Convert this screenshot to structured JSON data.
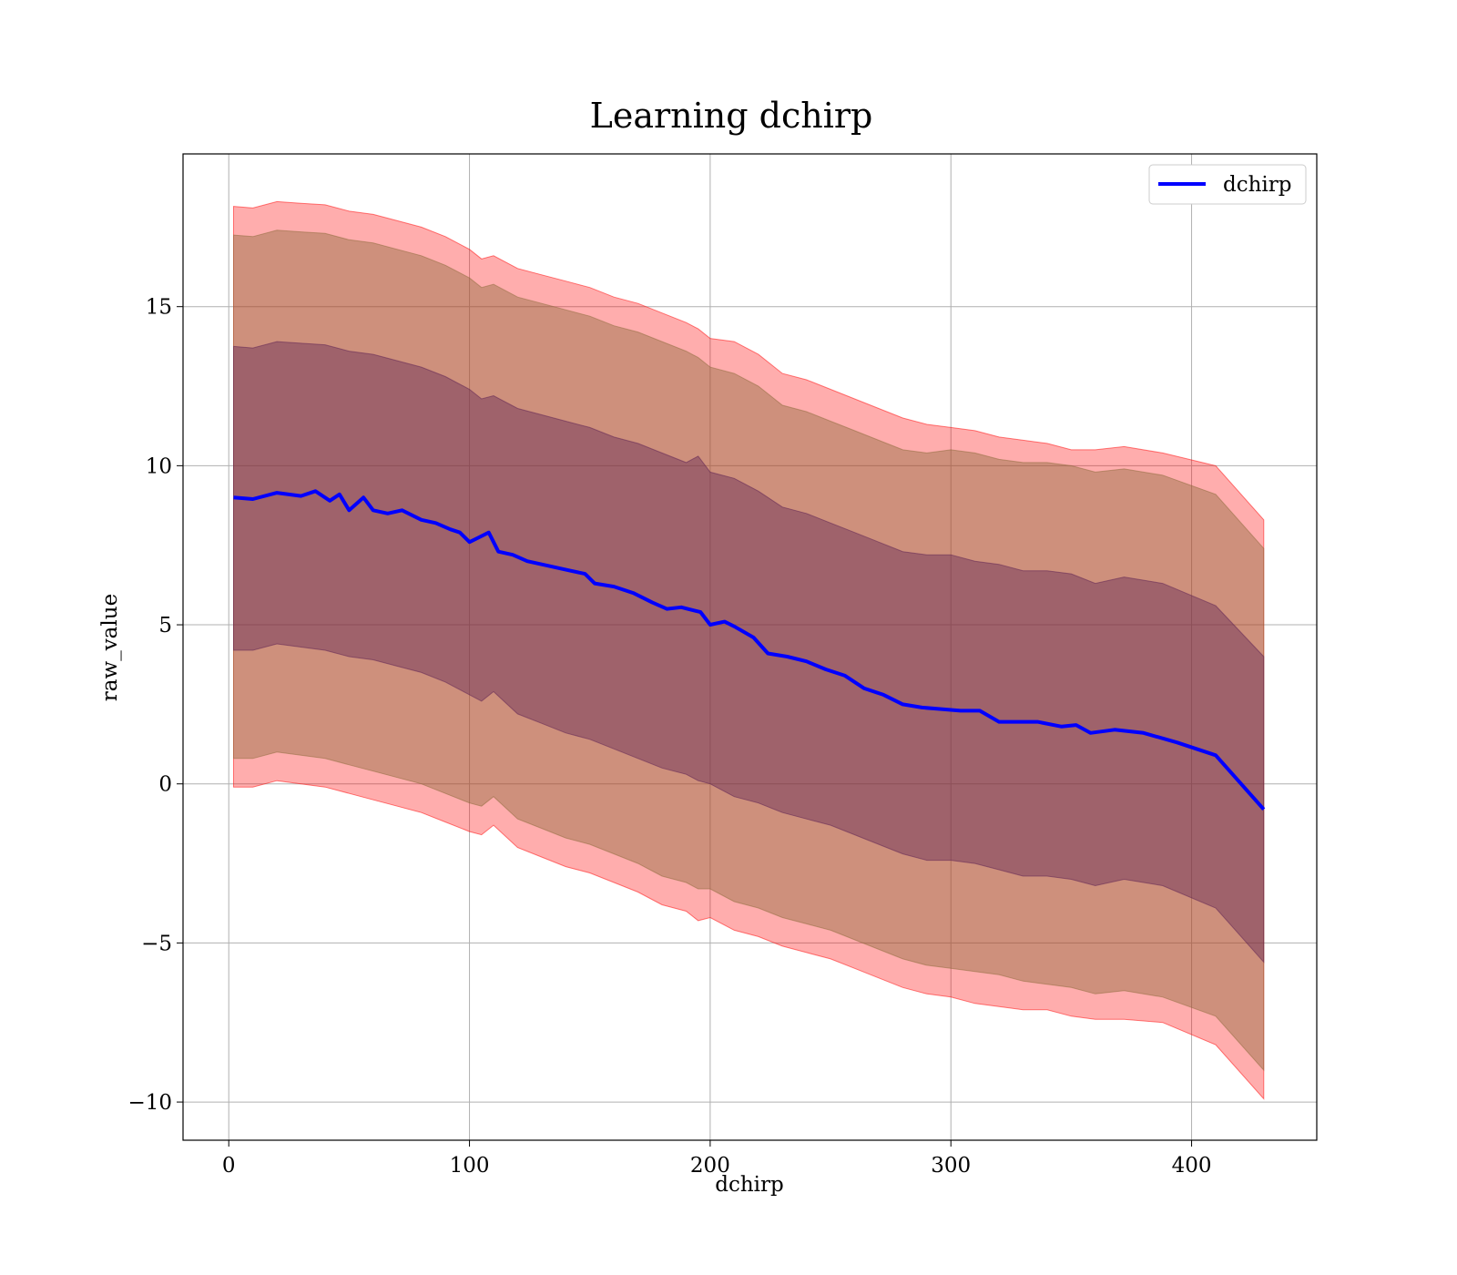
{
  "chart_data": {
    "type": "area",
    "title": "Learning dchirp",
    "xlabel": "dchirp",
    "ylabel": "raw_value",
    "xlim": [
      -19,
      452
    ],
    "ylim": [
      -11.2,
      19.8
    ],
    "x_ticks": [
      0,
      100,
      200,
      300,
      400
    ],
    "x_tick_labels": [
      "0",
      "100",
      "200",
      "300",
      "400"
    ],
    "y_ticks": [
      -10,
      -5,
      0,
      5,
      10,
      15
    ],
    "y_tick_labels": [
      "−10",
      "−5",
      "0",
      "5",
      "10",
      "15"
    ],
    "grid": true,
    "legend_position": "top-right",
    "series": [
      {
        "name": "dchirp",
        "color": "#0000ff",
        "x": [
          2,
          10,
          20,
          30,
          36,
          42,
          46,
          50,
          56,
          60,
          66,
          72,
          80,
          86,
          92,
          96,
          100,
          104,
          108,
          112,
          118,
          124,
          130,
          136,
          142,
          148,
          152,
          160,
          168,
          176,
          182,
          188,
          196,
          200,
          206,
          210,
          218,
          224,
          232,
          240,
          248,
          256,
          264,
          272,
          280,
          288,
          296,
          304,
          312,
          320,
          328,
          336,
          346,
          352,
          358,
          368,
          380,
          394,
          410,
          430
        ],
        "y": [
          9.0,
          8.95,
          9.15,
          9.05,
          9.2,
          8.9,
          9.1,
          8.6,
          9.0,
          8.6,
          8.5,
          8.6,
          8.3,
          8.2,
          8.0,
          7.9,
          7.6,
          7.75,
          7.9,
          7.3,
          7.2,
          7.0,
          6.9,
          6.8,
          6.7,
          6.6,
          6.3,
          6.2,
          6.0,
          5.7,
          5.5,
          5.55,
          5.4,
          5.0,
          5.1,
          4.95,
          4.6,
          4.1,
          4.0,
          3.85,
          3.6,
          3.4,
          3.0,
          2.8,
          2.5,
          2.4,
          2.35,
          2.3,
          2.3,
          1.95,
          1.95,
          1.95,
          1.8,
          1.85,
          1.6,
          1.7,
          1.6,
          1.3,
          0.9,
          -0.8
        ]
      }
    ],
    "bands": [
      {
        "name": "outer",
        "color": "#ff0000",
        "opacity": 0.32,
        "x": [
          2,
          10,
          20,
          30,
          40,
          50,
          60,
          70,
          80,
          90,
          100,
          105,
          110,
          120,
          130,
          140,
          150,
          160,
          170,
          180,
          190,
          195,
          200,
          210,
          220,
          230,
          240,
          250,
          260,
          270,
          280,
          290,
          300,
          310,
          320,
          330,
          340,
          350,
          360,
          372,
          388,
          410,
          430
        ],
        "upper": [
          18.15,
          18.1,
          18.3,
          18.25,
          18.2,
          18.0,
          17.9,
          17.7,
          17.5,
          17.2,
          16.8,
          16.5,
          16.6,
          16.2,
          16.0,
          15.8,
          15.6,
          15.3,
          15.1,
          14.8,
          14.5,
          14.3,
          14.0,
          13.9,
          13.5,
          12.9,
          12.7,
          12.4,
          12.1,
          11.8,
          11.5,
          11.3,
          11.2,
          11.1,
          10.9,
          10.8,
          10.7,
          10.5,
          10.5,
          10.6,
          10.4,
          10.0,
          8.3
        ],
        "lower": [
          -0.1,
          -0.1,
          0.1,
          0.0,
          -0.1,
          -0.3,
          -0.5,
          -0.7,
          -0.9,
          -1.2,
          -1.5,
          -1.6,
          -1.3,
          -2.0,
          -2.3,
          -2.6,
          -2.8,
          -3.1,
          -3.4,
          -3.8,
          -4.0,
          -4.3,
          -4.2,
          -4.6,
          -4.8,
          -5.1,
          -5.3,
          -5.5,
          -5.8,
          -6.1,
          -6.4,
          -6.6,
          -6.7,
          -6.9,
          -7.0,
          -7.1,
          -7.1,
          -7.3,
          -7.4,
          -7.4,
          -7.5,
          -8.2,
          -9.9
        ]
      },
      {
        "name": "middle",
        "color": "#8b6a3a",
        "opacity": 0.42,
        "x": [
          2,
          10,
          20,
          30,
          40,
          50,
          60,
          70,
          80,
          90,
          100,
          105,
          110,
          120,
          130,
          140,
          150,
          160,
          170,
          180,
          190,
          195,
          200,
          210,
          220,
          230,
          240,
          250,
          260,
          270,
          280,
          290,
          300,
          310,
          320,
          330,
          340,
          350,
          360,
          372,
          388,
          410,
          430
        ],
        "upper": [
          17.25,
          17.2,
          17.4,
          17.35,
          17.3,
          17.1,
          17.0,
          16.8,
          16.6,
          16.3,
          15.9,
          15.6,
          15.7,
          15.3,
          15.1,
          14.9,
          14.7,
          14.4,
          14.2,
          13.9,
          13.6,
          13.4,
          13.1,
          12.9,
          12.5,
          11.9,
          11.7,
          11.4,
          11.1,
          10.8,
          10.5,
          10.4,
          10.5,
          10.4,
          10.2,
          10.1,
          10.1,
          10.0,
          9.8,
          9.9,
          9.7,
          9.1,
          7.4
        ],
        "lower": [
          0.8,
          0.8,
          1.0,
          0.9,
          0.8,
          0.6,
          0.4,
          0.2,
          0.0,
          -0.3,
          -0.6,
          -0.7,
          -0.4,
          -1.1,
          -1.4,
          -1.7,
          -1.9,
          -2.2,
          -2.5,
          -2.9,
          -3.1,
          -3.3,
          -3.3,
          -3.7,
          -3.9,
          -4.2,
          -4.4,
          -4.6,
          -4.9,
          -5.2,
          -5.5,
          -5.7,
          -5.8,
          -5.9,
          -6.0,
          -6.2,
          -6.3,
          -6.4,
          -6.6,
          -6.5,
          -6.7,
          -7.3,
          -9.0
        ]
      },
      {
        "name": "inner",
        "color": "#5a1e52",
        "opacity": 0.4,
        "x": [
          2,
          10,
          20,
          30,
          40,
          50,
          60,
          70,
          80,
          90,
          100,
          105,
          110,
          120,
          130,
          140,
          150,
          160,
          170,
          180,
          190,
          195,
          200,
          210,
          220,
          230,
          240,
          250,
          260,
          270,
          280,
          290,
          300,
          310,
          320,
          330,
          340,
          350,
          360,
          372,
          388,
          410,
          430
        ],
        "upper": [
          13.75,
          13.7,
          13.9,
          13.85,
          13.8,
          13.6,
          13.5,
          13.3,
          13.1,
          12.8,
          12.4,
          12.1,
          12.2,
          11.8,
          11.6,
          11.4,
          11.2,
          10.9,
          10.7,
          10.4,
          10.1,
          10.3,
          9.8,
          9.6,
          9.2,
          8.7,
          8.5,
          8.2,
          7.9,
          7.6,
          7.3,
          7.2,
          7.2,
          7.0,
          6.9,
          6.7,
          6.7,
          6.6,
          6.3,
          6.5,
          6.3,
          5.6,
          4.0
        ],
        "lower": [
          4.2,
          4.2,
          4.4,
          4.3,
          4.2,
          4.0,
          3.9,
          3.7,
          3.5,
          3.2,
          2.8,
          2.6,
          2.9,
          2.2,
          1.9,
          1.6,
          1.4,
          1.1,
          0.8,
          0.5,
          0.3,
          0.1,
          0.0,
          -0.4,
          -0.6,
          -0.9,
          -1.1,
          -1.3,
          -1.6,
          -1.9,
          -2.2,
          -2.4,
          -2.4,
          -2.5,
          -2.7,
          -2.9,
          -2.9,
          -3.0,
          -3.2,
          -3.0,
          -3.2,
          -3.9,
          -5.6
        ]
      }
    ]
  }
}
